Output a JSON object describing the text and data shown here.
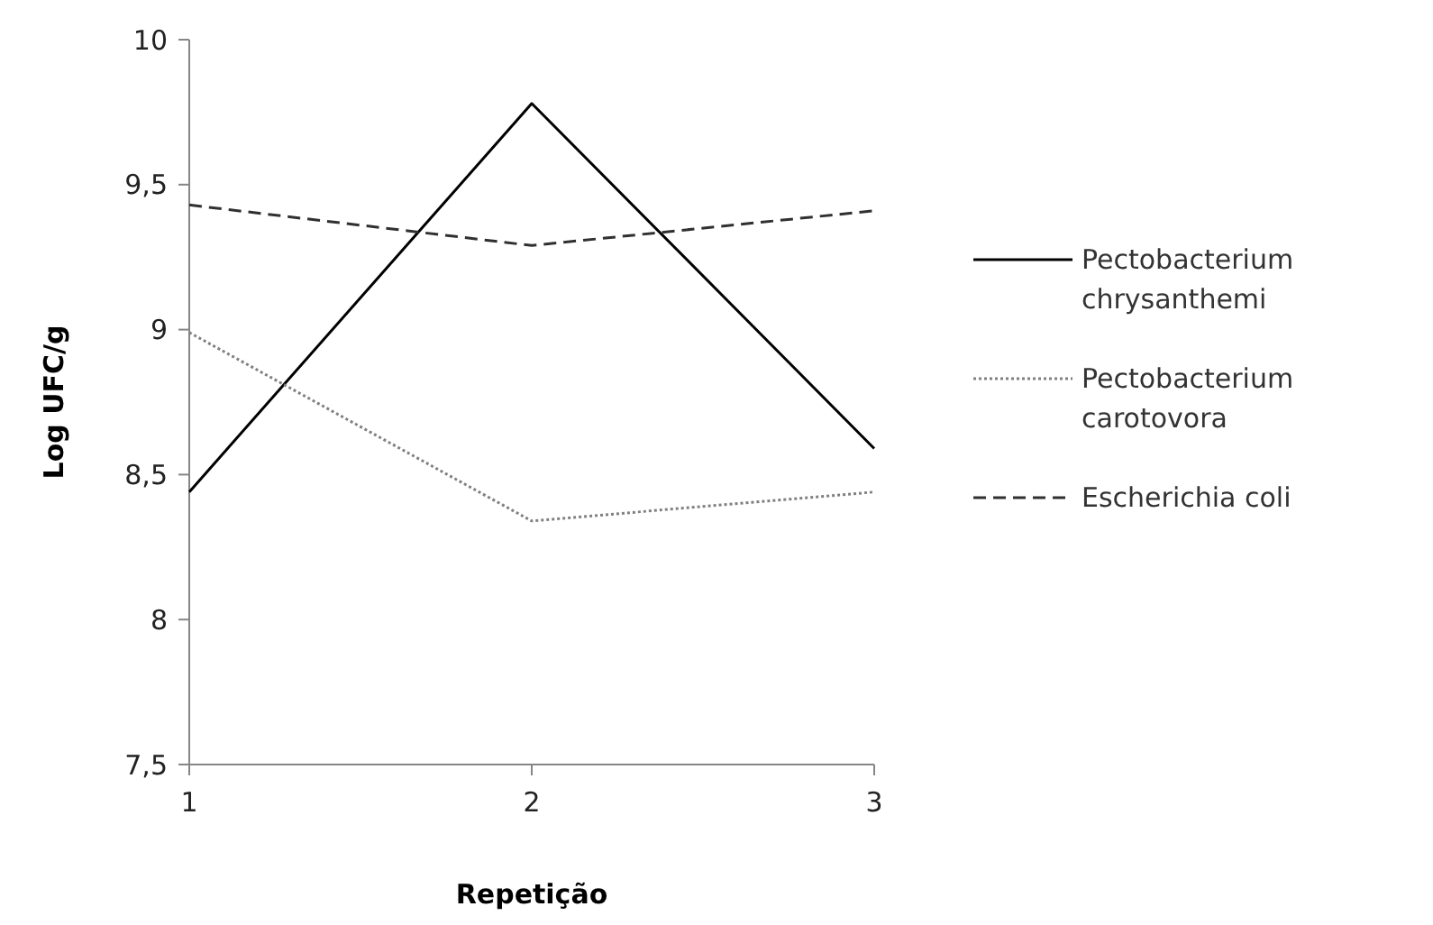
{
  "chart_data": {
    "type": "line",
    "xlabel": "Repetição",
    "ylabel": "Log UFC/g",
    "categories": [
      "1",
      "2",
      "3"
    ],
    "series": [
      {
        "name": "Pectobacterium chrysanthemi",
        "color": "#000000",
        "line_style": "solid",
        "values": [
          8.44,
          9.78,
          8.59
        ]
      },
      {
        "name": "Pectobacterium carotovora",
        "color": "#808080",
        "line_style": "dotted",
        "values": [
          8.99,
          8.34,
          8.44
        ]
      },
      {
        "name": "Escherichia coli",
        "color": "#303030",
        "line_style": "dashed",
        "values": [
          9.43,
          9.29,
          9.41
        ]
      }
    ],
    "ylim": [
      7.5,
      10
    ],
    "yticks": [
      {
        "value": 7.5,
        "label": "7,5"
      },
      {
        "value": 8,
        "label": "8"
      },
      {
        "value": 8.5,
        "label": "8,5"
      },
      {
        "value": 9,
        "label": "9"
      },
      {
        "value": 9.5,
        "label": "9,5"
      },
      {
        "value": 10,
        "label": "10"
      }
    ],
    "grid": false,
    "legend": "right",
    "marker": "none"
  }
}
